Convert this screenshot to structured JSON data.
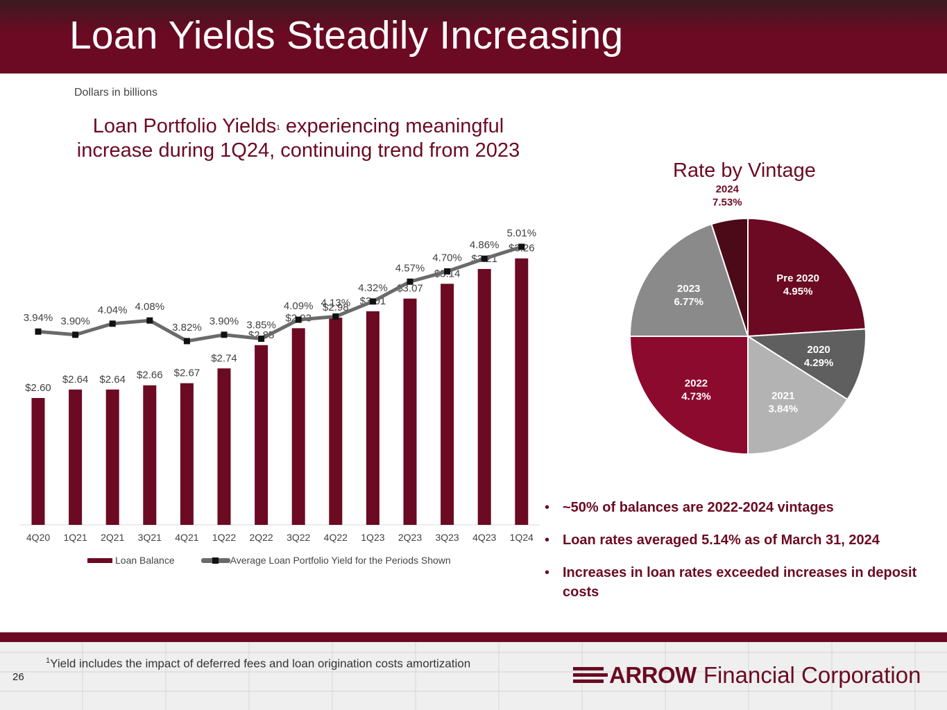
{
  "header": {
    "title": "Loan Yields Steadily Increasing"
  },
  "unit_note": "Dollars in billions",
  "chart_heading": {
    "part1": "Loan Portfolio Yields",
    "sup": "1",
    "part2": " experiencing meaningful increase during 1Q24, continuing trend from 2023"
  },
  "colors": {
    "brand": "#6b0a22",
    "line": "#6a6a6a",
    "marker": "#111111"
  },
  "chart_data": [
    {
      "type": "bar+line",
      "categories": [
        "4Q20",
        "1Q21",
        "2Q21",
        "3Q21",
        "4Q21",
        "1Q22",
        "2Q22",
        "3Q22",
        "4Q22",
        "1Q23",
        "2Q23",
        "3Q23",
        "4Q23",
        "1Q24"
      ],
      "series": [
        {
          "name": "Loan Balance",
          "type": "bar",
          "values": [
            2.6,
            2.64,
            2.64,
            2.66,
            2.67,
            2.74,
            2.85,
            2.93,
            2.98,
            3.01,
            3.07,
            3.14,
            3.21,
            3.26
          ],
          "labels": [
            "$2.60",
            "$2.64",
            "$2.64",
            "$2.66",
            "$2.67",
            "$2.74",
            "$2.85",
            "$2.93",
            "$2.98",
            "$3.01",
            "$3.07",
            "$3.14",
            "$3.21",
            "$3.26"
          ]
        },
        {
          "name": "Average Loan Portfolio Yield for the Periods Shown",
          "type": "line",
          "values": [
            3.94,
            3.9,
            4.04,
            4.08,
            3.82,
            3.9,
            3.85,
            4.09,
            4.13,
            4.32,
            4.57,
            4.7,
            4.86,
            5.01
          ],
          "labels": [
            "3.94%",
            "3.90%",
            "4.04%",
            "4.08%",
            "3.82%",
            "3.90%",
            "3.85%",
            "4.09%",
            "4.13%",
            "4.32%",
            "4.57%",
            "4.70%",
            "4.86%",
            "5.01%"
          ]
        }
      ],
      "bar_axis_range": [
        2.0,
        3.4
      ],
      "line_axis_range": [
        1.5,
        5.5
      ],
      "legend_position": "bottom"
    },
    {
      "type": "pie",
      "title": "Rate by Vintage",
      "slices": [
        {
          "label": "Pre 2020",
          "value": 24,
          "rate": "4.95%",
          "color": "#6b0a22"
        },
        {
          "label": "2020",
          "value": 10,
          "rate": "4.29%",
          "color": "#5f5f5f"
        },
        {
          "label": "2021",
          "value": 16,
          "rate": "3.84%",
          "color": "#b3b3b3"
        },
        {
          "label": "2022",
          "value": 25,
          "rate": "4.73%",
          "color": "#8c0a2e"
        },
        {
          "label": "2023",
          "value": 20,
          "rate": "6.77%",
          "color": "#8a8a8a"
        },
        {
          "label": "2024",
          "value": 5,
          "rate": "7.53%",
          "color": "#4a0a18"
        }
      ]
    }
  ],
  "bullets": [
    "~50% of balances are 2022-2024 vintages",
    "Loan rates averaged 5.14% as of March 31, 2024",
    "Increases in loan rates exceeded  increases in deposit costs"
  ],
  "footer": {
    "footnote_sup": "1",
    "footnote": "Yield includes the impact of deferred fees and loan origination costs amortization",
    "page_number": "26",
    "logo_word": "ARROW",
    "logo_rest": "Financial Corporation"
  }
}
